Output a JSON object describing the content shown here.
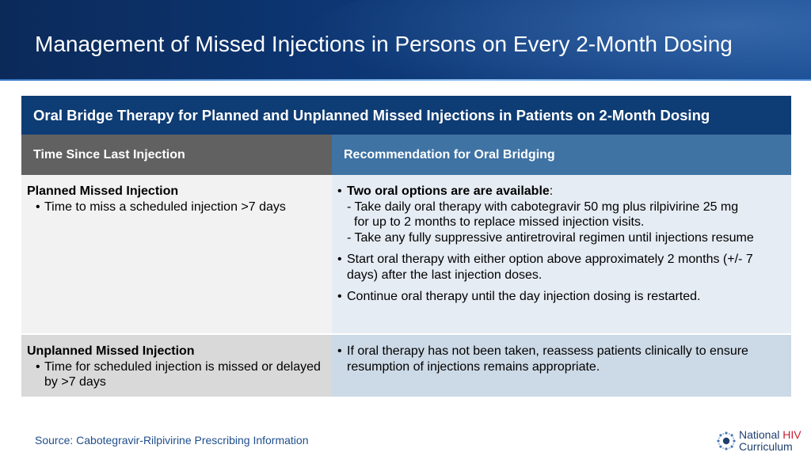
{
  "slide": {
    "title": "Management of Missed Injections in Persons on Every 2-Month Dosing"
  },
  "table": {
    "banner": "Oral Bridge Therapy for Planned and Unplanned Missed Injections in Patients on 2-Month Dosing",
    "headers": [
      "Time Since Last Injection",
      "Recommendation for Oral Bridging"
    ],
    "rows": [
      {
        "heading": "Planned Missed Injection",
        "criteria": [
          "Time to miss a scheduled injection >7 days"
        ],
        "recommendations": {
          "lead_bold": "Two oral options are are available",
          "lead_colon": ":",
          "options": [
            [
              "- Take daily oral therapy with cabotegravir 50 mg plus rilpivirine 25 mg",
              "for up to 2 months to replace missed injection visits."
            ],
            [
              "- Take any fully suppressive antiretroviral regimen until injections resume"
            ]
          ],
          "items": [
            "Start oral therapy with either option above approximately 2 months (+/- 7 days) after the last injection doses.",
            "Continue oral therapy until the day injection dosing is restarted."
          ]
        }
      },
      {
        "heading": "Unplanned Missed Injection",
        "criteria": [
          "Time for scheduled injection is missed or delayed by >7 days"
        ],
        "recommendations": {
          "items": [
            "If oral therapy has not been taken, reassess patients clinically to ensure resumption of injections remains appropriate."
          ]
        }
      }
    ]
  },
  "footer": {
    "source": "Source: Cabotegravir-Rilpivirine Prescribing Information",
    "logo_line1_a": "National ",
    "logo_line1_b": "HIV",
    "logo_line2": "Curriculum"
  },
  "bullet_glyph": "•",
  "icons": [
    "national-hiv-curriculum-logo-icon"
  ],
  "colors": {
    "header_dark": "#0b2a5a",
    "banner": "#0e3c74",
    "col1_header": "#616161",
    "col2_header": "#3f73a4",
    "source_text": "#1f4e8c",
    "hiv_red": "#c8202f"
  }
}
